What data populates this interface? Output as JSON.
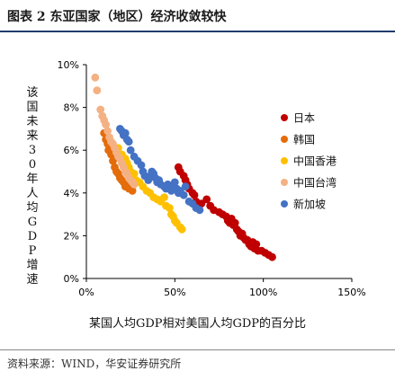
{
  "figure": {
    "title": "图表 2 东亚国家（地区）经济收敛较快",
    "source": "资料来源：WIND，华安证券研究所"
  },
  "chart_data": {
    "type": "scatter",
    "xlabel": "某国人均GDP相对美国人均GDP的百分比",
    "ylabel": "该国未来30年人均GDP增速",
    "xlim": [
      0,
      150
    ],
    "ylim": [
      0,
      10
    ],
    "x_ticks": [
      "0%",
      "50%",
      "100%",
      "150%"
    ],
    "y_ticks": [
      "0%",
      "2%",
      "4%",
      "6%",
      "8%",
      "10%"
    ],
    "grid": false,
    "legend_position": "right",
    "series": [
      {
        "name": "日本",
        "color": "#c00000",
        "points": [
          [
            52,
            5.2
          ],
          [
            53,
            5.0
          ],
          [
            55,
            4.8
          ],
          [
            56,
            4.6
          ],
          [
            57,
            4.4
          ],
          [
            58,
            4.2
          ],
          [
            60,
            4.0
          ],
          [
            61,
            3.9
          ],
          [
            62,
            3.6
          ],
          [
            65,
            3.5
          ],
          [
            68,
            3.7
          ],
          [
            70,
            3.4
          ],
          [
            72,
            3.2
          ],
          [
            75,
            3.1
          ],
          [
            77,
            3.0
          ],
          [
            79,
            2.9
          ],
          [
            80,
            2.7
          ],
          [
            81,
            2.6
          ],
          [
            82,
            2.8
          ],
          [
            83,
            2.5
          ],
          [
            84,
            2.6
          ],
          [
            85,
            2.3
          ],
          [
            86,
            2.2
          ],
          [
            87,
            2.0
          ],
          [
            88,
            2.1
          ],
          [
            89,
            1.9
          ],
          [
            90,
            1.8
          ],
          [
            91,
            1.8
          ],
          [
            92,
            1.6
          ],
          [
            93,
            1.5
          ],
          [
            94,
            1.7
          ],
          [
            95,
            1.4
          ],
          [
            96,
            1.6
          ],
          [
            97,
            1.3
          ],
          [
            99,
            1.3
          ],
          [
            101,
            1.2
          ],
          [
            103,
            1.1
          ],
          [
            105,
            1.0
          ]
        ]
      },
      {
        "name": "韩国",
        "color": "#e46c0a",
        "points": [
          [
            10,
            6.8
          ],
          [
            11,
            6.5
          ],
          [
            12,
            6.3
          ],
          [
            12.5,
            6.0
          ],
          [
            13,
            6.2
          ],
          [
            14,
            5.8
          ],
          [
            15,
            5.5
          ],
          [
            15.5,
            5.6
          ],
          [
            16,
            5.2
          ],
          [
            17,
            5.0
          ],
          [
            18,
            4.9
          ],
          [
            19,
            4.7
          ],
          [
            20,
            4.6
          ],
          [
            21,
            4.5
          ],
          [
            22,
            4.3
          ],
          [
            23,
            4.4
          ],
          [
            24,
            4.2
          ],
          [
            25,
            4.3
          ],
          [
            26,
            4.1
          ]
        ]
      },
      {
        "name": "中国香港",
        "color": "#ffc000",
        "points": [
          [
            18,
            6.1
          ],
          [
            20,
            5.8
          ],
          [
            22,
            5.6
          ],
          [
            23,
            5.4
          ],
          [
            24,
            5.2
          ],
          [
            25,
            5.0
          ],
          [
            26,
            4.8
          ],
          [
            27,
            4.9
          ],
          [
            28,
            4.6
          ],
          [
            30,
            4.5
          ],
          [
            32,
            4.3
          ],
          [
            34,
            4.1
          ],
          [
            36,
            4.0
          ],
          [
            38,
            3.8
          ],
          [
            40,
            3.7
          ],
          [
            42,
            3.6
          ],
          [
            44,
            3.8
          ],
          [
            45,
            3.4
          ],
          [
            47,
            3.3
          ],
          [
            48,
            3.0
          ],
          [
            49,
            2.9
          ],
          [
            50,
            2.7
          ],
          [
            51,
            2.6
          ],
          [
            53,
            2.4
          ],
          [
            54,
            2.3
          ]
        ]
      },
      {
        "name": "中国台湾",
        "color": "#f4b183",
        "points": [
          [
            5,
            9.4
          ],
          [
            6,
            8.8
          ],
          [
            8,
            7.9
          ],
          [
            9,
            7.6
          ],
          [
            10,
            7.4
          ],
          [
            11,
            7.2
          ],
          [
            12,
            6.9
          ],
          [
            13,
            6.6
          ],
          [
            14,
            6.4
          ],
          [
            15,
            6.3
          ],
          [
            16,
            6.1
          ],
          [
            17,
            5.9
          ],
          [
            18,
            5.7
          ],
          [
            19,
            5.6
          ],
          [
            20,
            5.4
          ],
          [
            21,
            5.2
          ],
          [
            22,
            5.0
          ],
          [
            23,
            4.9
          ],
          [
            24,
            4.7
          ],
          [
            25,
            4.6
          ],
          [
            26,
            4.5
          ],
          [
            27,
            4.4
          ]
        ]
      },
      {
        "name": "新加坡",
        "color": "#4472c4",
        "points": [
          [
            19,
            7.0
          ],
          [
            20,
            6.9
          ],
          [
            21,
            6.7
          ],
          [
            22,
            6.8
          ],
          [
            23,
            6.5
          ],
          [
            24,
            6.4
          ],
          [
            25,
            6.0
          ],
          [
            27,
            5.7
          ],
          [
            29,
            5.5
          ],
          [
            31,
            5.3
          ],
          [
            32,
            5.0
          ],
          [
            33,
            4.8
          ],
          [
            35,
            4.6
          ],
          [
            36,
            4.8
          ],
          [
            37,
            5.0
          ],
          [
            38,
            4.9
          ],
          [
            39,
            4.7
          ],
          [
            40,
            4.5
          ],
          [
            41,
            4.6
          ],
          [
            42,
            4.4
          ],
          [
            44,
            4.3
          ],
          [
            45,
            4.2
          ],
          [
            46,
            4.4
          ],
          [
            48,
            4.1
          ],
          [
            49,
            4.3
          ],
          [
            50,
            4.5
          ],
          [
            51,
            4.2
          ],
          [
            52,
            4.0
          ],
          [
            53,
            4.1
          ],
          [
            55,
            3.9
          ],
          [
            56,
            4.3
          ],
          [
            58,
            3.6
          ],
          [
            60,
            3.5
          ],
          [
            62,
            3.3
          ],
          [
            64,
            3.2
          ]
        ]
      }
    ]
  }
}
